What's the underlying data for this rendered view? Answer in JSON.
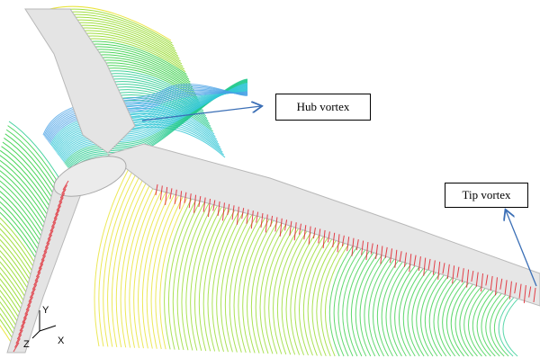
{
  "annotations": {
    "hub_label": "Hub vortex",
    "tip_label": "Tip vortex"
  },
  "axes_triad": {
    "y": "Y",
    "z": "Z",
    "x": "X"
  },
  "colors": {
    "blade_fill": "#e4e4e4",
    "blade_edge": "#b8b8b8",
    "arrow": "#3b6fb6",
    "streamline_palette": [
      "#e0202a",
      "#f08a1a",
      "#e6e020",
      "#8fd81e",
      "#2ecc40",
      "#22c98c",
      "#33c7d6",
      "#4aa3e6"
    ]
  }
}
